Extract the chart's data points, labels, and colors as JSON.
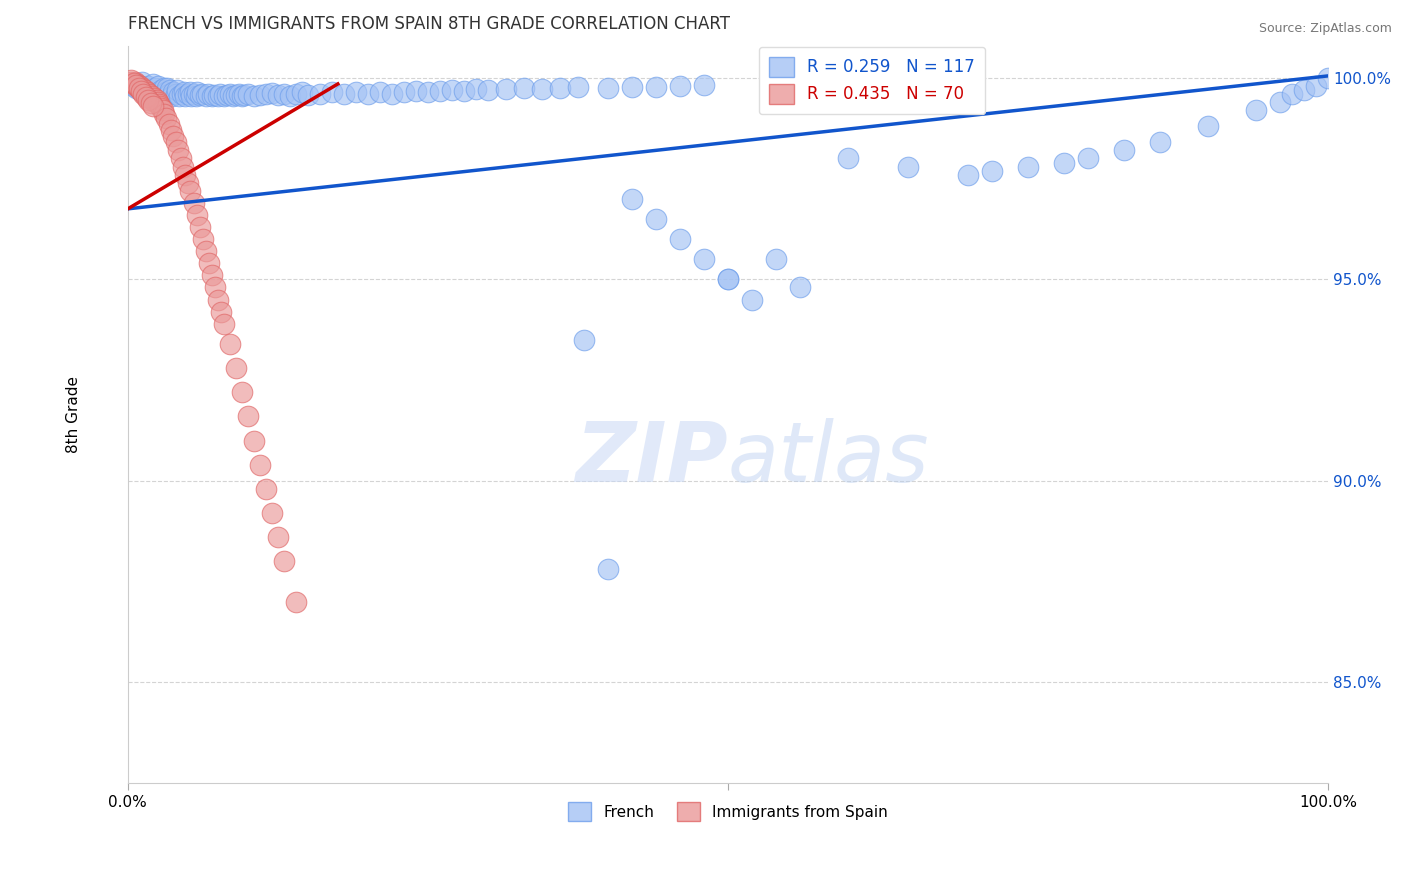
{
  "title": "FRENCH VS IMMIGRANTS FROM SPAIN 8TH GRADE CORRELATION CHART",
  "source": "Source: ZipAtlas.com",
  "ylabel": "8th Grade",
  "ytick_labels": [
    "85.0%",
    "90.0%",
    "95.0%",
    "100.0%"
  ],
  "ytick_values": [
    0.85,
    0.9,
    0.95,
    1.0
  ],
  "xlim": [
    0.0,
    1.0
  ],
  "ylim": [
    0.825,
    1.008
  ],
  "legend_blue_label": "R = 0.259   N = 117",
  "legend_pink_label": "R = 0.435   N = 70",
  "legend_label_blue": "French",
  "legend_label_pink": "Immigrants from Spain",
  "blue_color": "#a4c2f4",
  "pink_color": "#ea9999",
  "blue_edge_color": "#6d9eeb",
  "pink_edge_color": "#e06666",
  "blue_line_color": "#1155cc",
  "pink_line_color": "#cc0000",
  "background_color": "#ffffff",
  "blue_line": [
    0.0,
    0.9675,
    1.0,
    1.0005
  ],
  "pink_line": [
    0.0,
    0.9675,
    0.175,
    0.9985
  ],
  "blue_x": [
    0.005,
    0.007,
    0.008,
    0.01,
    0.012,
    0.013,
    0.015,
    0.015,
    0.017,
    0.018,
    0.02,
    0.021,
    0.022,
    0.023,
    0.025,
    0.025,
    0.027,
    0.028,
    0.03,
    0.03,
    0.032,
    0.033,
    0.034,
    0.035,
    0.037,
    0.038,
    0.04,
    0.041,
    0.043,
    0.045,
    0.047,
    0.048,
    0.05,
    0.052,
    0.053,
    0.055,
    0.057,
    0.058,
    0.06,
    0.062,
    0.065,
    0.067,
    0.07,
    0.072,
    0.075,
    0.077,
    0.08,
    0.083,
    0.085,
    0.088,
    0.09,
    0.093,
    0.095,
    0.097,
    0.1,
    0.105,
    0.11,
    0.115,
    0.12,
    0.125,
    0.13,
    0.135,
    0.14,
    0.145,
    0.15,
    0.16,
    0.17,
    0.18,
    0.19,
    0.2,
    0.21,
    0.22,
    0.23,
    0.24,
    0.25,
    0.26,
    0.27,
    0.28,
    0.29,
    0.3,
    0.315,
    0.33,
    0.345,
    0.36,
    0.375,
    0.4,
    0.42,
    0.44,
    0.46,
    0.48,
    0.5,
    0.52,
    0.54,
    0.56,
    0.42,
    0.44,
    0.46,
    0.48,
    0.5,
    0.6,
    0.65,
    0.7,
    0.72,
    0.75,
    0.78,
    0.8,
    0.83,
    0.86,
    0.9,
    0.94,
    0.96,
    0.97,
    0.98,
    0.99,
    1.0,
    0.38,
    0.4
  ],
  "blue_y": [
    0.998,
    0.9975,
    0.9985,
    0.997,
    0.999,
    0.9965,
    0.9975,
    0.996,
    0.998,
    0.9955,
    0.997,
    0.9985,
    0.996,
    0.9975,
    0.9965,
    0.998,
    0.9955,
    0.997,
    0.996,
    0.9975,
    0.9965,
    0.9975,
    0.996,
    0.997,
    0.9955,
    0.9965,
    0.996,
    0.997,
    0.9955,
    0.996,
    0.9965,
    0.9955,
    0.996,
    0.9965,
    0.9955,
    0.996,
    0.9955,
    0.9965,
    0.9958,
    0.996,
    0.9955,
    0.996,
    0.9955,
    0.9958,
    0.9955,
    0.996,
    0.9955,
    0.9958,
    0.996,
    0.9955,
    0.9958,
    0.996,
    0.9955,
    0.9958,
    0.996,
    0.9955,
    0.9958,
    0.996,
    0.9962,
    0.9958,
    0.996,
    0.9955,
    0.996,
    0.9965,
    0.9958,
    0.996,
    0.9965,
    0.996,
    0.9965,
    0.996,
    0.9965,
    0.996,
    0.9965,
    0.9968,
    0.9965,
    0.9968,
    0.997,
    0.9968,
    0.9972,
    0.997,
    0.9972,
    0.9975,
    0.9972,
    0.9975,
    0.9978,
    0.9975,
    0.9978,
    0.9978,
    0.998,
    0.9982,
    0.95,
    0.945,
    0.955,
    0.948,
    0.97,
    0.965,
    0.96,
    0.955,
    0.95,
    0.98,
    0.978,
    0.976,
    0.977,
    0.978,
    0.979,
    0.98,
    0.982,
    0.984,
    0.988,
    0.992,
    0.994,
    0.996,
    0.997,
    0.998,
    1.0,
    0.935,
    0.878
  ],
  "pink_x": [
    0.003,
    0.005,
    0.006,
    0.007,
    0.008,
    0.009,
    0.01,
    0.011,
    0.012,
    0.013,
    0.014,
    0.015,
    0.016,
    0.017,
    0.018,
    0.019,
    0.02,
    0.021,
    0.022,
    0.023,
    0.024,
    0.025,
    0.026,
    0.027,
    0.028,
    0.029,
    0.03,
    0.032,
    0.034,
    0.036,
    0.038,
    0.04,
    0.042,
    0.044,
    0.046,
    0.048,
    0.05,
    0.052,
    0.055,
    0.058,
    0.06,
    0.063,
    0.065,
    0.068,
    0.07,
    0.073,
    0.075,
    0.078,
    0.08,
    0.085,
    0.09,
    0.095,
    0.1,
    0.105,
    0.11,
    0.115,
    0.12,
    0.125,
    0.13,
    0.14,
    0.003,
    0.005,
    0.007,
    0.009,
    0.011,
    0.013,
    0.015,
    0.017,
    0.019,
    0.021
  ],
  "pink_y": [
    0.999,
    0.9985,
    0.999,
    0.998,
    0.9985,
    0.9975,
    0.998,
    0.997,
    0.9975,
    0.9965,
    0.997,
    0.996,
    0.9965,
    0.9955,
    0.996,
    0.995,
    0.9955,
    0.9945,
    0.995,
    0.994,
    0.9945,
    0.994,
    0.9935,
    0.993,
    0.9925,
    0.992,
    0.991,
    0.99,
    0.9885,
    0.987,
    0.9855,
    0.984,
    0.982,
    0.98,
    0.978,
    0.976,
    0.974,
    0.972,
    0.969,
    0.966,
    0.963,
    0.96,
    0.957,
    0.954,
    0.951,
    0.948,
    0.945,
    0.942,
    0.939,
    0.934,
    0.928,
    0.922,
    0.916,
    0.91,
    0.904,
    0.898,
    0.892,
    0.886,
    0.88,
    0.87,
    0.9995,
    0.9988,
    0.9982,
    0.9975,
    0.9968,
    0.996,
    0.9953,
    0.9945,
    0.9938,
    0.993
  ]
}
